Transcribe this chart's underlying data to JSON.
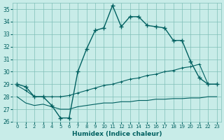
{
  "xlabel": "Humidex (Indice chaleur)",
  "xlim": [
    -0.5,
    23.5
  ],
  "ylim": [
    26,
    35.5
  ],
  "yticks": [
    26,
    27,
    28,
    29,
    30,
    31,
    32,
    33,
    34,
    35
  ],
  "xticks": [
    0,
    1,
    2,
    3,
    4,
    5,
    6,
    7,
    8,
    9,
    10,
    11,
    12,
    13,
    14,
    15,
    16,
    17,
    18,
    19,
    20,
    21,
    22,
    23
  ],
  "bg_color": "#c8ece8",
  "grid_color": "#7fbfb8",
  "line_color": "#006060",
  "series_main": [
    29.0,
    28.8,
    28.0,
    28.0,
    27.3,
    26.3,
    26.3,
    30.0,
    31.8,
    33.3,
    33.5,
    35.3,
    33.6,
    34.4,
    34.4,
    33.7,
    33.6,
    33.5,
    32.5,
    32.5,
    30.8,
    29.5,
    29.0,
    29.0
  ],
  "series_upper": [
    28.9,
    28.5,
    28.0,
    28.0,
    28.0,
    28.0,
    28.1,
    28.3,
    28.5,
    28.7,
    28.9,
    29.0,
    29.2,
    29.4,
    29.5,
    29.7,
    29.8,
    30.0,
    30.1,
    30.3,
    30.4,
    30.6,
    29.0,
    29.0
  ],
  "series_lower": [
    28.0,
    27.5,
    27.3,
    27.4,
    27.2,
    27.0,
    27.0,
    27.2,
    27.3,
    27.4,
    27.5,
    27.5,
    27.6,
    27.6,
    27.7,
    27.7,
    27.8,
    27.8,
    27.85,
    27.85,
    27.9,
    27.9,
    28.0,
    28.0
  ]
}
